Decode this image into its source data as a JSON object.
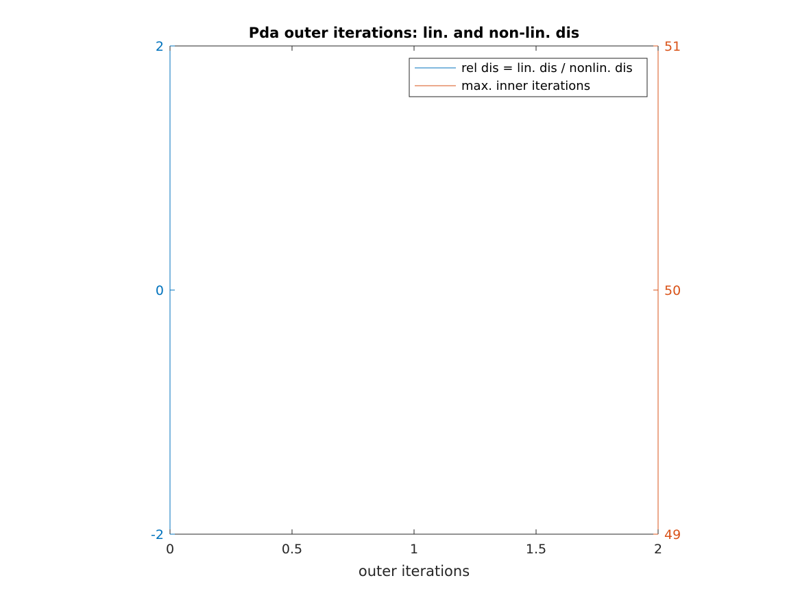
{
  "chart_data": {
    "type": "line",
    "title": "Pda outer iterations: lin. and non-lin. dis",
    "xlabel": "outer iterations",
    "ylabel_left": "",
    "ylabel_right": "",
    "xlim": [
      0,
      2
    ],
    "ylim_left": [
      -2,
      2
    ],
    "ylim_right": [
      49,
      51
    ],
    "x_ticks": [
      0,
      0.5,
      1,
      1.5,
      2
    ],
    "x_tick_labels": [
      "0",
      "0.5",
      "1",
      "1.5",
      "2"
    ],
    "y_left_ticks": [
      -2,
      0,
      2
    ],
    "y_left_tick_labels": [
      "-2",
      "0",
      "2"
    ],
    "y_right_ticks": [
      49,
      50,
      51
    ],
    "y_right_tick_labels": [
      "49",
      "50",
      "51"
    ],
    "grid": false,
    "legend_position": "top-right",
    "series": [
      {
        "name": "rel dis = lin. dis / nonlin. dis",
        "axis": "left",
        "color": "#0072BD",
        "x": [],
        "y": []
      },
      {
        "name": "max. inner iterations",
        "axis": "right",
        "color": "#D95319",
        "x": [],
        "y": []
      }
    ],
    "colors": {
      "left_axis": "#0072BD",
      "right_axis": "#D95319",
      "text": "#262626",
      "box": "#262626"
    }
  }
}
